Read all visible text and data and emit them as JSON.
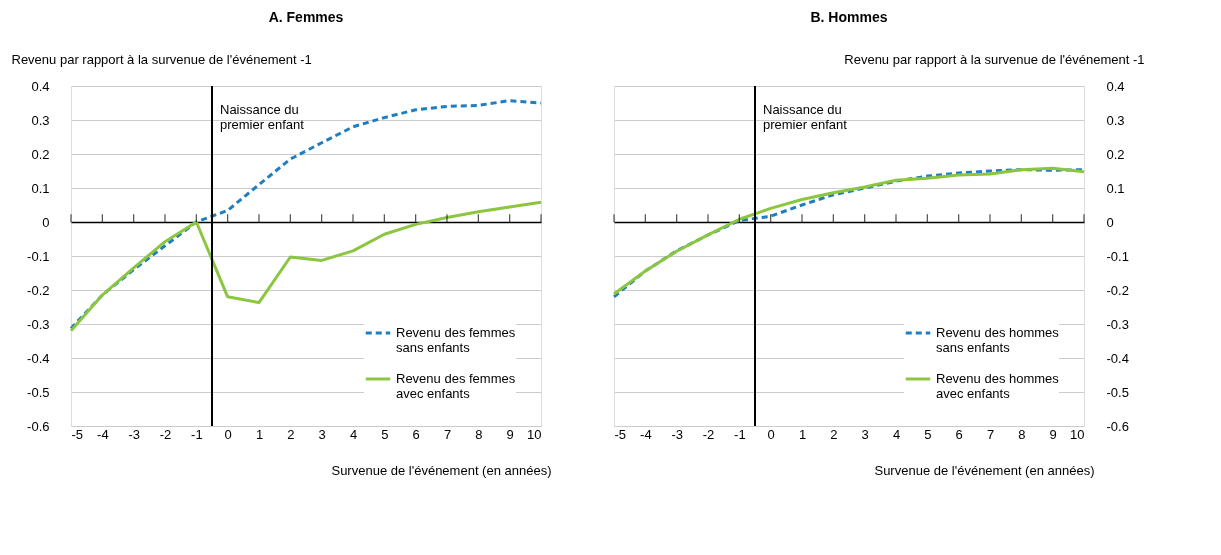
{
  "chart_data": [
    {
      "type": "line",
      "title": "A. Femmes",
      "ylabel": "Revenu par rapport à la survenue de l'événement -1",
      "xlabel": "Survenue de l'événement (en années)",
      "x": [
        -5,
        -4,
        -3,
        -2,
        -1,
        0,
        1,
        2,
        3,
        4,
        5,
        6,
        7,
        8,
        9,
        10
      ],
      "series": [
        {
          "name": "Revenu des femmes sans enfants",
          "color": "#1f7dc2",
          "line_style": "dashed",
          "values": [
            -0.313,
            -0.215,
            -0.14,
            -0.07,
            0,
            0.034,
            0.11,
            0.185,
            0.233,
            0.28,
            0.307,
            0.33,
            0.34,
            0.343,
            0.357,
            0.35
          ]
        },
        {
          "name": "Revenu des femmes avec enfants",
          "color": "#8cc63f",
          "line_style": "solid",
          "values": [
            -0.32,
            -0.215,
            -0.135,
            -0.058,
            0,
            -0.22,
            -0.237,
            -0.103,
            -0.113,
            -0.085,
            -0.036,
            -0.007,
            0.013,
            0.03,
            0.044,
            0.058
          ]
        }
      ],
      "xlim": [
        -5,
        10
      ],
      "xticks": [
        -5,
        -4,
        -3,
        -2,
        -1,
        0,
        1,
        2,
        3,
        4,
        5,
        6,
        7,
        8,
        9,
        10
      ],
      "ylim": [
        -0.6,
        0.4
      ],
      "yticks": [
        -0.6,
        -0.5,
        -0.4,
        -0.3,
        -0.2,
        -0.1,
        0,
        0.1,
        0.2,
        0.3,
        0.4
      ],
      "ref_lines": [
        {
          "axis": "x",
          "value": -0.5,
          "label": "Naissance du premier enfant",
          "color": "#000000"
        }
      ],
      "grid": "y",
      "legend": "bottom right",
      "marker": "none"
    },
    {
      "type": "line",
      "title": "B. Hommes",
      "ylabel": "Revenu par rapport à la survenue de l'événement -1",
      "xlabel": "Survenue de l'événement (en années)",
      "x": [
        -5,
        -4,
        -3,
        -2,
        -1,
        0,
        1,
        2,
        3,
        4,
        5,
        6,
        7,
        8,
        9,
        10
      ],
      "series": [
        {
          "name": "Revenu des hommes sans enfants",
          "color": "#1f7dc2",
          "line_style": "dashed",
          "values": [
            -0.22,
            -0.144,
            -0.085,
            -0.038,
            0.004,
            0.017,
            0.05,
            0.08,
            0.1,
            0.12,
            0.135,
            0.144,
            0.15,
            0.154,
            0.152,
            0.154
          ]
        },
        {
          "name": "Revenu des hommes avec enfants",
          "color": "#8cc63f",
          "line_style": "solid",
          "values": [
            -0.212,
            -0.144,
            -0.086,
            -0.038,
            0.008,
            0.04,
            0.066,
            0.086,
            0.103,
            0.123,
            0.129,
            0.138,
            0.141,
            0.154,
            0.158,
            0.148
          ]
        }
      ],
      "xlim": [
        -5,
        10
      ],
      "xticks": [
        -5,
        -4,
        -3,
        -2,
        -1,
        0,
        1,
        2,
        3,
        4,
        5,
        6,
        7,
        8,
        9,
        10
      ],
      "ylim": [
        -0.6,
        0.4
      ],
      "yticks": [
        -0.6,
        -0.5,
        -0.4,
        -0.3,
        -0.2,
        -0.1,
        0,
        0.1,
        0.2,
        0.3,
        0.4
      ],
      "ref_lines": [
        {
          "axis": "x",
          "value": -0.5,
          "label": "Naissance du premier enfant",
          "color": "#000000"
        }
      ],
      "grid": "y",
      "legend": "bottom right",
      "marker": "none"
    }
  ]
}
